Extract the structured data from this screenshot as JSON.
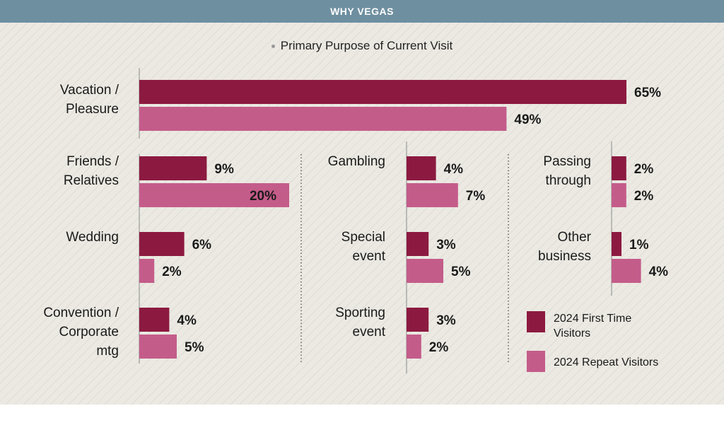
{
  "header": {
    "title": "WHY VEGAS"
  },
  "chart_data": {
    "type": "bar",
    "orientation": "horizontal",
    "subtitle": "Primary Purpose of Current Visit",
    "unit": "%",
    "series": [
      {
        "name": "2024 First Time Visitors",
        "color": "#8c1a40"
      },
      {
        "name": "2024 Repeat Visitors",
        "color": "#c45c8a"
      }
    ],
    "categories": [
      {
        "label": [
          "Vacation /",
          "Pleasure"
        ],
        "values": [
          65,
          49
        ]
      },
      {
        "label": [
          "Friends /",
          "Relatives"
        ],
        "values": [
          9,
          20
        ]
      },
      {
        "label": [
          "Wedding"
        ],
        "values": [
          6,
          2
        ]
      },
      {
        "label": [
          "Convention /",
          "Corporate",
          "mtg"
        ],
        "values": [
          4,
          5
        ]
      },
      {
        "label": [
          "Gambling"
        ],
        "values": [
          4,
          7
        ]
      },
      {
        "label": [
          "Special",
          "event"
        ],
        "values": [
          3,
          5
        ]
      },
      {
        "label": [
          "Sporting",
          "event"
        ],
        "values": [
          3,
          2
        ]
      },
      {
        "label": [
          "Passing",
          "through"
        ],
        "values": [
          2,
          2
        ]
      },
      {
        "label": [
          "Other",
          "business"
        ],
        "values": [
          1,
          4
        ]
      }
    ],
    "legend": [
      "2024 First Time Visitors",
      "2024 Repeat Visitors"
    ],
    "legend_position": "bottom-right"
  }
}
